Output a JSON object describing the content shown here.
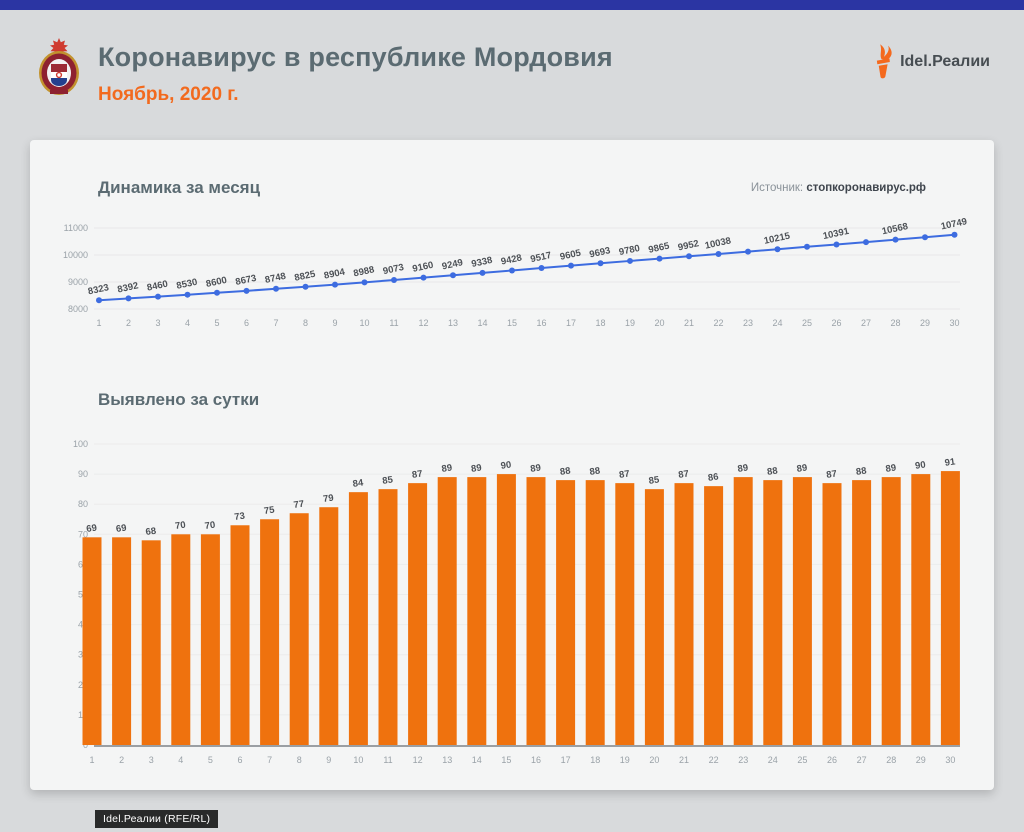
{
  "header": {
    "title": "Коронавирус в республике Мордовия",
    "subtitle": "Ноябрь, 2020 г.",
    "brand": "Idel.Реалии"
  },
  "source": {
    "label": "Источник:",
    "value": "стопкоронавирус.рф"
  },
  "footer_badge": "Idel.Реалии (RFE/RL)",
  "icons": {
    "emblem": "mordovia-coat-of-arms",
    "brand": "torch-icon"
  },
  "colors": {
    "topbar_blue": "#2b35a3",
    "title_slate": "#5b6b72",
    "accent_orange": "#f26a1e",
    "line_blue": "#3d6ce0",
    "bar_orange": "#ef720e",
    "card_bg": "#f4f5f5",
    "page_bg": "#d8dadc"
  },
  "chart_data": [
    {
      "type": "line",
      "title": "Динамика за месяц",
      "x": [
        1,
        2,
        3,
        4,
        5,
        6,
        7,
        8,
        9,
        10,
        11,
        12,
        13,
        14,
        15,
        16,
        17,
        18,
        19,
        20,
        21,
        22,
        23,
        24,
        25,
        26,
        27,
        28,
        29,
        30
      ],
      "values": [
        8323,
        8392,
        8460,
        8530,
        8600,
        8673,
        8748,
        8825,
        8904,
        8988,
        9073,
        9160,
        9249,
        9338,
        9428,
        9517,
        9605,
        9693,
        9780,
        9865,
        9952,
        10038,
        10127,
        10215,
        10304,
        10391,
        10479,
        10568,
        10658,
        10749
      ],
      "label_hidden_days": [
        23,
        25,
        27,
        29
      ],
      "ylim": [
        8000,
        11000
      ],
      "yticks": [
        8000,
        9000,
        10000,
        11000
      ],
      "grid": true,
      "legend": "none",
      "color": "#3d6ce0"
    },
    {
      "type": "bar",
      "title": "Выявлено за сутки",
      "categories": [
        1,
        2,
        3,
        4,
        5,
        6,
        7,
        8,
        9,
        10,
        11,
        12,
        13,
        14,
        15,
        16,
        17,
        18,
        19,
        20,
        21,
        22,
        23,
        24,
        25,
        26,
        27,
        28,
        29,
        30
      ],
      "values": [
        69,
        69,
        68,
        70,
        70,
        73,
        75,
        77,
        79,
        84,
        85,
        87,
        89,
        89,
        90,
        89,
        88,
        88,
        87,
        85,
        87,
        86,
        89,
        88,
        89,
        87,
        88,
        89,
        90,
        91
      ],
      "ylim": [
        0,
        100
      ],
      "yticks": [
        0,
        10,
        20,
        30,
        40,
        50,
        60,
        70,
        80,
        90,
        100
      ],
      "grid": true,
      "legend": "none",
      "color": "#ef720e"
    }
  ]
}
